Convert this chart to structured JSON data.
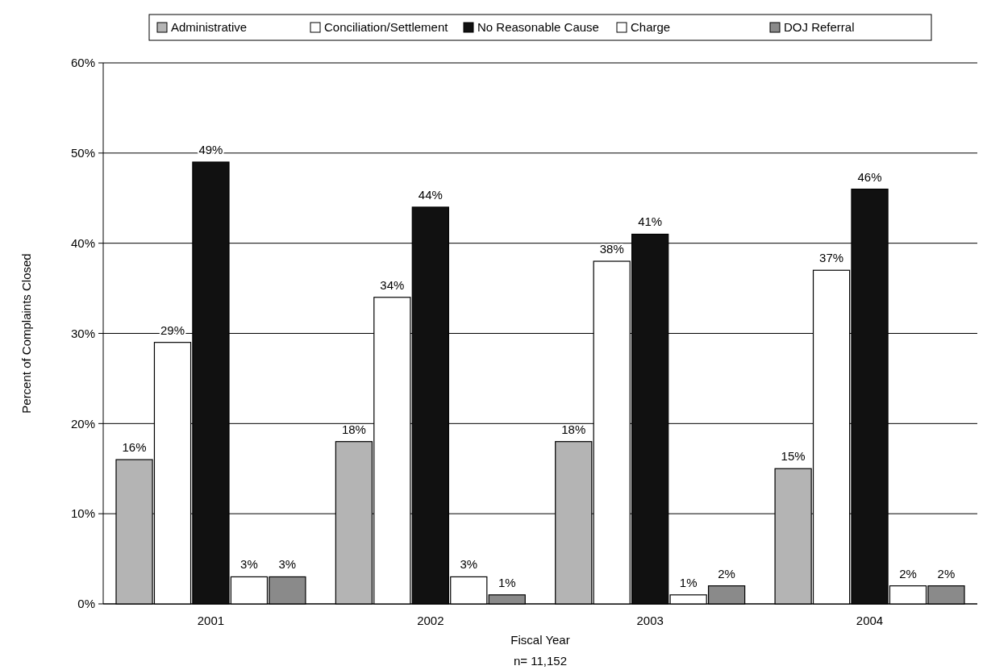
{
  "chart_data": {
    "type": "bar",
    "xlabel": "Fiscal Year",
    "ylabel": "Percent of Complaints Closed",
    "categories": [
      "2001",
      "2002",
      "2003",
      "2004"
    ],
    "series": [
      {
        "name": "Administrative",
        "color": "#b4b4b4",
        "values": [
          16,
          18,
          18,
          15
        ],
        "value_labels": [
          "16%",
          "18%",
          "18%",
          "15%"
        ]
      },
      {
        "name": "Conciliation/Settlement",
        "color": "#ffffff",
        "values": [
          29,
          34,
          38,
          37
        ],
        "value_labels": [
          "29%",
          "34%",
          "38%",
          "37%"
        ]
      },
      {
        "name": "No Reasonable Cause",
        "color": "#111111",
        "values": [
          49,
          44,
          41,
          46
        ],
        "value_labels": [
          "49%",
          "44%",
          "41%",
          "46%"
        ]
      },
      {
        "name": "Charge",
        "color": "#ffffff",
        "values": [
          3,
          3,
          1,
          2
        ],
        "value_labels": [
          "3%",
          "3%",
          "1%",
          "2%"
        ]
      },
      {
        "name": "DOJ Referral",
        "color": "#8a8a8a",
        "values": [
          3,
          1,
          2,
          2
        ],
        "value_labels": [
          "3%",
          "1%",
          "2%",
          "2%"
        ]
      }
    ],
    "ylim": [
      0,
      60
    ],
    "yticks": [
      {
        "value": 0,
        "label": "0%"
      },
      {
        "value": 10,
        "label": "10%"
      },
      {
        "value": 20,
        "label": "20%"
      },
      {
        "value": 30,
        "label": "30%"
      },
      {
        "value": 40,
        "label": "40%"
      },
      {
        "value": 50,
        "label": "50%"
      },
      {
        "value": 60,
        "label": "60%"
      }
    ],
    "grid": "y",
    "legend": "top",
    "annotations": [
      "n= 11,152"
    ]
  }
}
